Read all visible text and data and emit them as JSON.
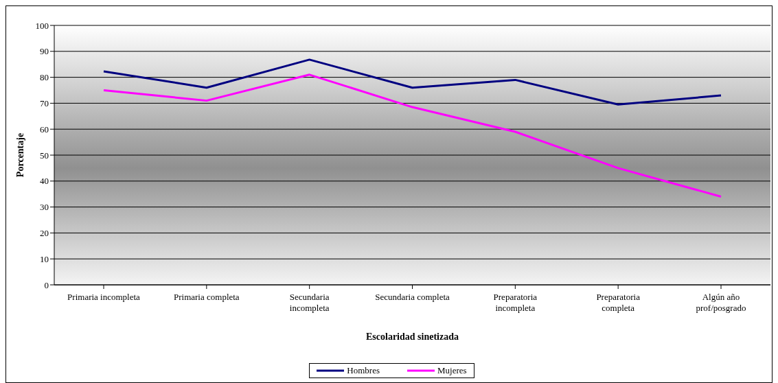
{
  "chart_data": {
    "type": "line",
    "xlabel": "Escolaridad sinetizada",
    "ylabel": "Porcentaje",
    "categories": [
      "Primaria incompleta",
      "Primaria completa",
      "Secundaria incompleta",
      "Secundaria completa",
      "Preparatoria incompleta",
      "Preparatoria completa",
      "Algún año prof/posgrado"
    ],
    "series": [
      {
        "name": "Hombres",
        "color": "#000080",
        "values": [
          82.3,
          76,
          86.8,
          76,
          79,
          69.5,
          73
        ]
      },
      {
        "name": "Mujeres",
        "color": "#ff00ff",
        "values": [
          75,
          71,
          81,
          68.5,
          59,
          45,
          34
        ]
      }
    ],
    "ylim": [
      0,
      100
    ],
    "yticks": [
      0,
      10,
      20,
      30,
      40,
      50,
      60,
      70,
      80,
      90,
      100
    ],
    "grid": "y",
    "legend": "bottom",
    "marker": "none",
    "line_style": "solid"
  }
}
